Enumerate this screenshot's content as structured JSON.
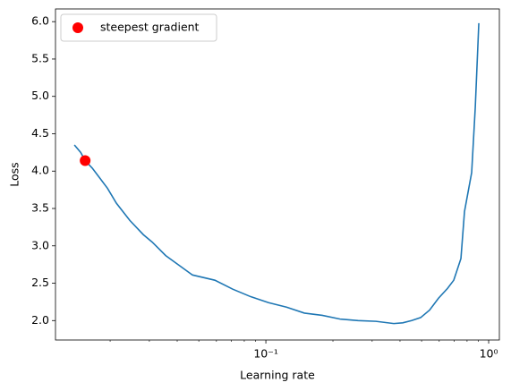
{
  "chart_data": {
    "type": "line",
    "xlabel": "Learning rate",
    "ylabel": "Loss",
    "xscale": "log",
    "xlim": [
      0.01137,
      1.117
    ],
    "ylim": [
      1.74,
      6.17
    ],
    "xticks": [
      {
        "value": 0.1,
        "label": "10⁻¹"
      },
      {
        "value": 1,
        "label": "10⁰"
      }
    ],
    "yticks": [
      {
        "value": 2,
        "label": "2.0"
      },
      {
        "value": 2.5,
        "label": "2.5"
      },
      {
        "value": 3,
        "label": "3.0"
      },
      {
        "value": 3.5,
        "label": "3.5"
      },
      {
        "value": 4,
        "label": "4.0"
      },
      {
        "value": 4.5,
        "label": "4.5"
      },
      {
        "value": 5,
        "label": "5.0"
      },
      {
        "value": 5.5,
        "label": "5.5"
      },
      {
        "value": 6,
        "label": "6.0"
      }
    ],
    "legend": "upper left",
    "series": [
      {
        "color": "#1f77b4",
        "x": [
          0.01382,
          0.01475,
          0.01545,
          0.01663,
          0.01774,
          0.01946,
          0.02134,
          0.02452,
          0.02818,
          0.0309,
          0.0355,
          0.04077,
          0.04685,
          0.05903,
          0.07101,
          0.08545,
          0.1028,
          0.1237,
          0.1489,
          0.1791,
          0.2155,
          0.2594,
          0.3119,
          0.3752,
          0.4115,
          0.4514,
          0.4952,
          0.543,
          0.5957,
          0.6535,
          0.6971,
          0.7508,
          0.7791,
          0.8389,
          0.8707,
          0.9033
        ],
        "values": [
          4.35,
          4.25,
          4.14,
          4.04,
          3.93,
          3.77,
          3.57,
          3.34,
          3.15,
          3.05,
          2.87,
          2.74,
          2.61,
          2.54,
          2.42,
          2.32,
          2.24,
          2.18,
          2.1,
          2.07,
          2.02,
          2.0,
          1.99,
          1.96,
          1.97,
          2.0,
          2.04,
          2.14,
          2.3,
          2.43,
          2.54,
          2.83,
          3.46,
          3.98,
          4.85,
          5.98
        ]
      },
      {
        "name": "steepest gradient",
        "type": "scatter",
        "color": "#ff0000",
        "x": [
          0.01545
        ],
        "values": [
          4.14
        ]
      }
    ]
  }
}
